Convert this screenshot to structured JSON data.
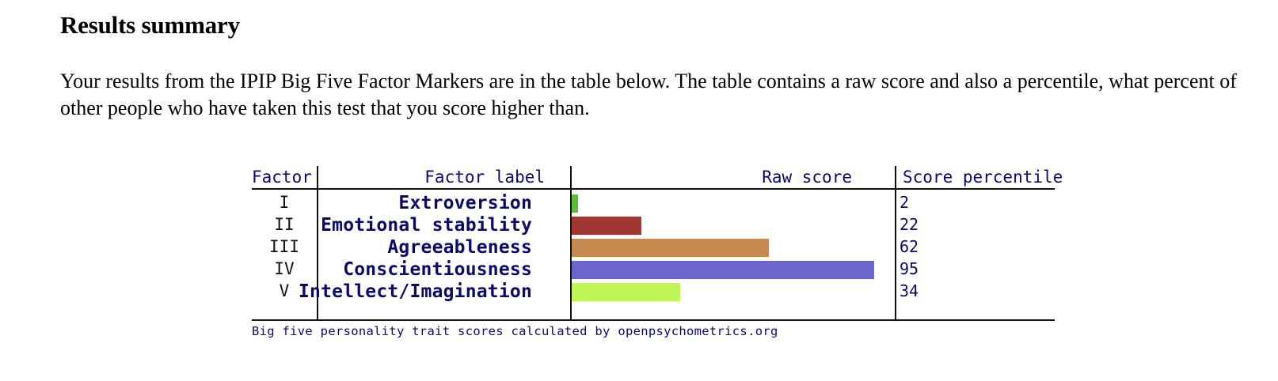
{
  "heading": "Results summary",
  "intro": "Your results from the IPIP Big Five Factor Markers are in the table below. The table contains a raw score and also a percentile, what percent of other people who have taken this test that you score higher than.",
  "chart_data": {
    "type": "bar",
    "headers": {
      "factor": "Factor",
      "factor_label": "Factor label",
      "raw_score": "Raw score",
      "score_percentile": "Score percentile"
    },
    "rows": [
      {
        "factor": "I",
        "label": "Extroversion",
        "percentile": 2,
        "percentile_text": "2",
        "color": "#5fbb3e"
      },
      {
        "factor": "II",
        "label": "Emotional stability",
        "percentile": 22,
        "percentile_text": "22",
        "color": "#a23632"
      },
      {
        "factor": "III",
        "label": "Agreeableness",
        "percentile": 62,
        "percentile_text": "62",
        "color": "#c68a50"
      },
      {
        "factor": "IV",
        "label": "Conscientiousness",
        "percentile": 95,
        "percentile_text": "95",
        "color": "#6c65cc"
      },
      {
        "factor": "V",
        "label": "Intellect/Imagination",
        "percentile": 34,
        "percentile_text": "34",
        "color": "#c0f55a"
      }
    ],
    "xlim": [
      0,
      100
    ],
    "caption": "Big five personality trait scores calculated by openpsychometrics.org"
  }
}
